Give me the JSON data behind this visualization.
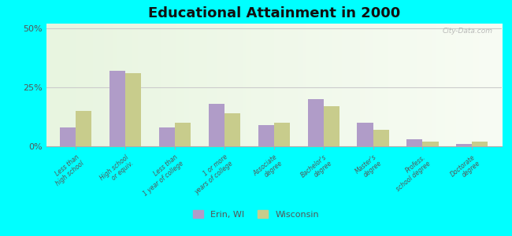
{
  "title": "Educational Attainment in 2000",
  "categories": [
    "Less than\nhigh school",
    "High school\nor equiv.",
    "Less than\n1 year of college",
    "1 or more\nyears of college",
    "Associate\ndegree",
    "Bachelor's\ndegree",
    "Master's\ndegree",
    "Profess.\nschool degree",
    "Doctorate\ndegree"
  ],
  "erin_wi": [
    8,
    32,
    8,
    18,
    9,
    20,
    10,
    3,
    1
  ],
  "wisconsin": [
    15,
    31,
    10,
    14,
    10,
    17,
    7,
    2,
    2
  ],
  "erin_color": "#b09cc8",
  "wisconsin_color": "#c8cc8c",
  "background_color": "#00ffff",
  "ylabel_ticks": [
    "0%",
    "25%",
    "50%"
  ],
  "yticks": [
    0,
    25,
    50
  ],
  "ylim": [
    0,
    52
  ],
  "legend_labels": [
    "Erin, WI",
    "Wisconsin"
  ],
  "watermark": "City-Data.com",
  "bar_width": 0.32
}
